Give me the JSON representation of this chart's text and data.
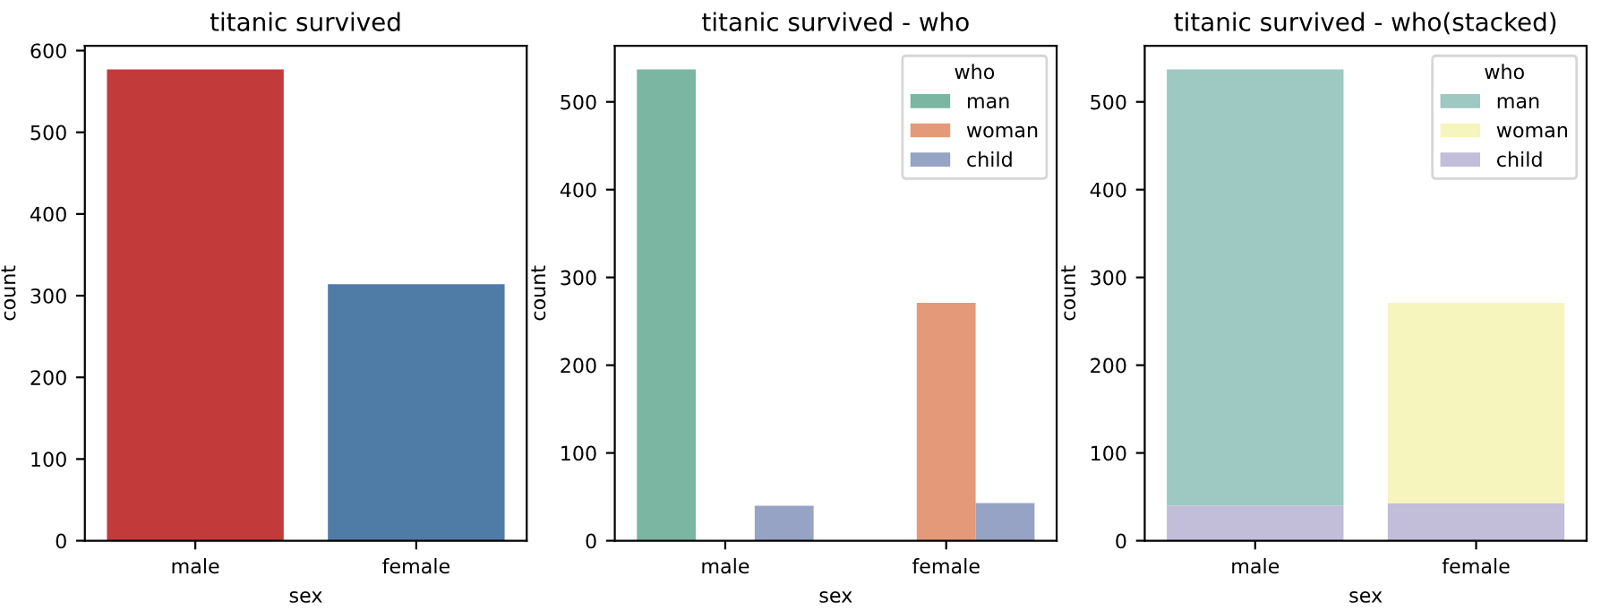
{
  "chart_data": [
    {
      "type": "bar",
      "title": "titanic survived",
      "xlabel": "sex",
      "ylabel": "count",
      "categories": [
        "male",
        "female"
      ],
      "values": [
        577,
        314
      ],
      "colors": [
        "#c23b3a",
        "#4f7ba7"
      ],
      "ylim": [
        0,
        605.85
      ],
      "yticks": [
        0,
        100,
        200,
        300,
        400,
        500,
        600
      ],
      "grid": false,
      "legend": false
    },
    {
      "type": "bar",
      "title": "titanic survived - who",
      "xlabel": "sex",
      "ylabel": "count",
      "categories": [
        "male",
        "female"
      ],
      "legend_title": "who",
      "legend": "top right",
      "ylim": [
        0,
        563.85
      ],
      "yticks": [
        0,
        100,
        200,
        300,
        400,
        500
      ],
      "grid": false,
      "series": [
        {
          "name": "man",
          "color": "#7ab6a1",
          "values": [
            537,
            null
          ]
        },
        {
          "name": "woman",
          "color": "#e49a78",
          "values": [
            null,
            271
          ]
        },
        {
          "name": "child",
          "color": "#97a3c4",
          "values": [
            40,
            43
          ]
        }
      ]
    },
    {
      "type": "bar",
      "title": "titanic survived - who(stacked)",
      "xlabel": "sex",
      "ylabel": "count",
      "categories": [
        "male",
        "female"
      ],
      "legend_title": "who",
      "legend": "top right",
      "stacked": true,
      "ylim": [
        0,
        563.85
      ],
      "yticks": [
        0,
        100,
        200,
        300,
        400,
        500
      ],
      "grid": false,
      "series": [
        {
          "name": "child",
          "color": "#c2bdd8",
          "values": [
            40,
            43
          ]
        },
        {
          "name": "woman",
          "color": "#f5f5bd",
          "values": [
            null,
            228
          ]
        },
        {
          "name": "man",
          "color": "#9ec8c2",
          "values": [
            497,
            null
          ]
        }
      ]
    }
  ]
}
